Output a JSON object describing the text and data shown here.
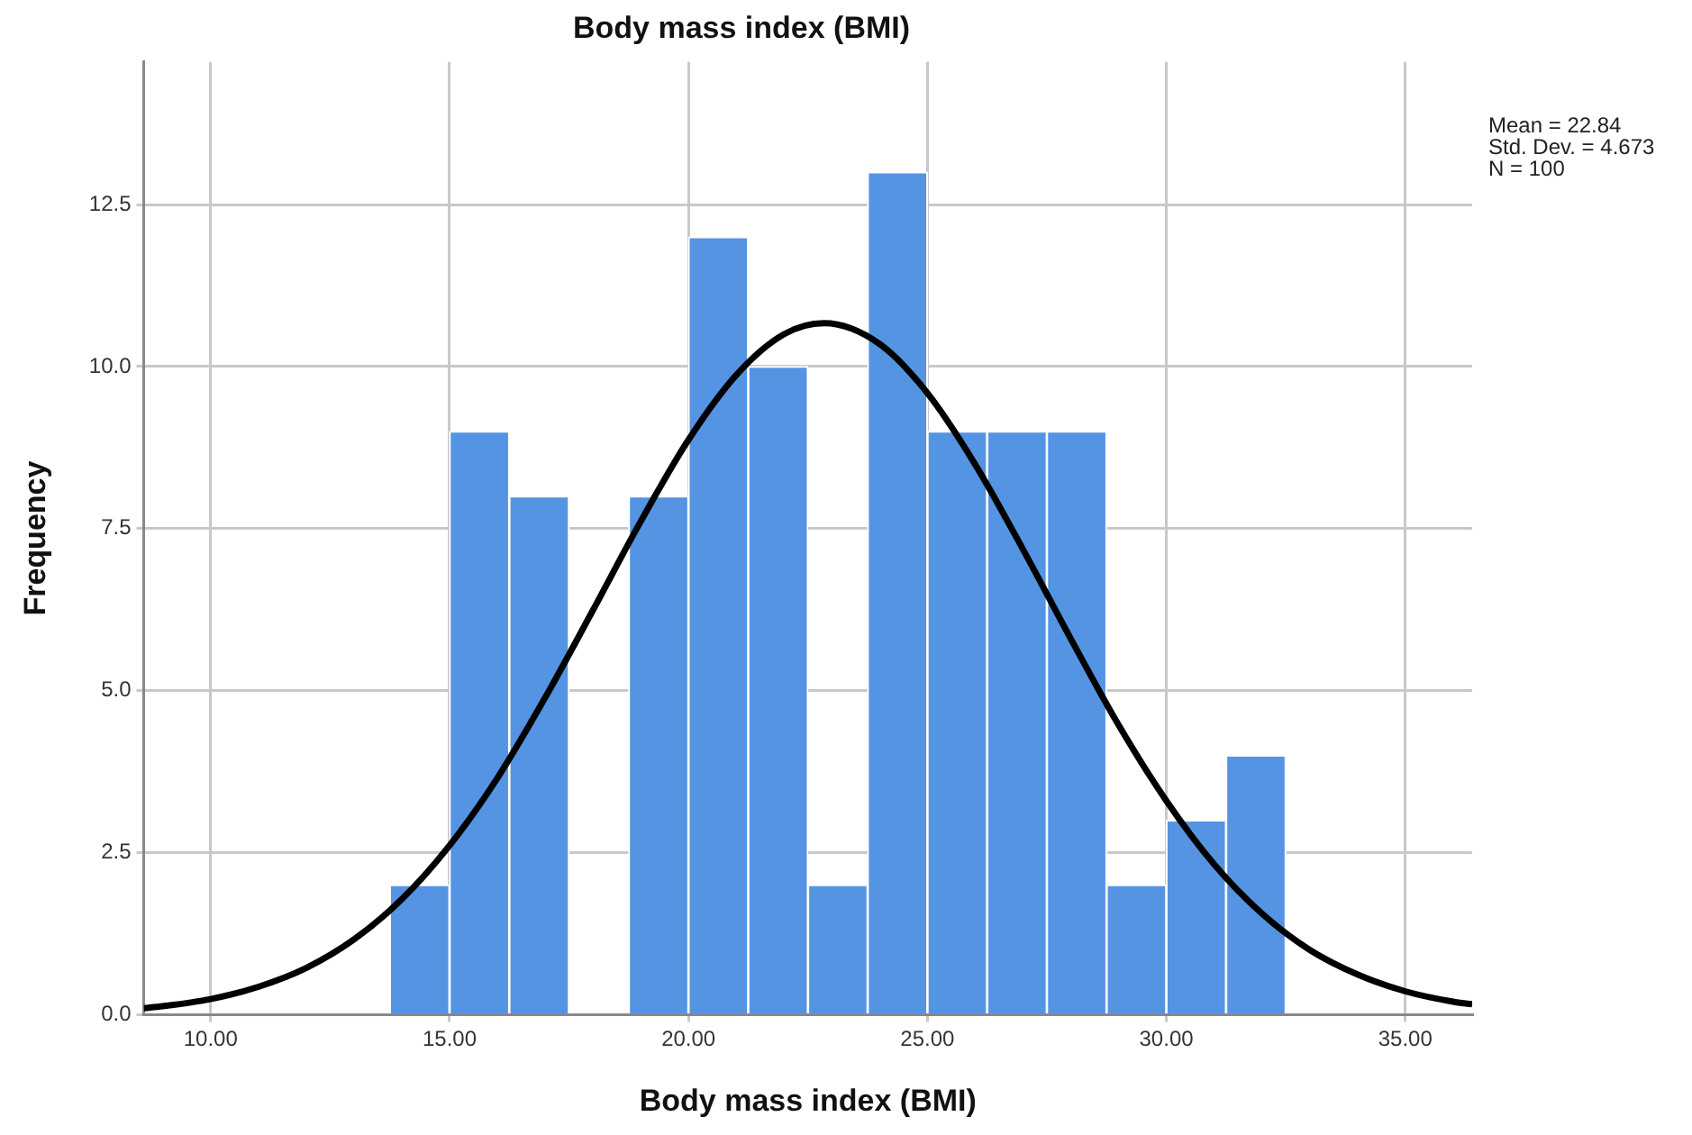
{
  "chart_data": {
    "type": "histogram",
    "title": "Body mass index (BMI)",
    "xlabel": "Body mass index (BMI)",
    "ylabel": "Frequency",
    "bins": [
      13.75,
      15,
      16.25,
      17.5,
      18.75,
      20,
      21.25,
      22.5,
      23.75,
      25,
      26.25,
      27.5,
      28.75,
      30,
      31.25,
      32.5
    ],
    "values": [
      2,
      9,
      8,
      0,
      8,
      12,
      10,
      2,
      13,
      9,
      9,
      9,
      2,
      3,
      4
    ],
    "color": "#5594e2",
    "series": [
      {
        "type": "line",
        "color": "#000000",
        "x": [
          8.6,
          9,
          10,
          11,
          12,
          13,
          14,
          15,
          16,
          17,
          18,
          19,
          20,
          21,
          22,
          22.84,
          24,
          25,
          26,
          27,
          28,
          29,
          30,
          31,
          32,
          33,
          34,
          35,
          36,
          36.4
        ],
        "values": [
          0.1,
          0.13,
          0.24,
          0.43,
          0.72,
          1.16,
          1.78,
          2.61,
          3.65,
          4.89,
          6.24,
          7.61,
          8.87,
          9.87,
          10.5,
          10.67,
          10.35,
          9.59,
          8.49,
          7.18,
          5.8,
          4.47,
          3.3,
          2.32,
          1.56,
          1.0,
          0.62,
          0.36,
          0.2,
          0.16
        ]
      }
    ],
    "xlim": [
      8.6,
      36.4
    ],
    "xticks": [
      {
        "value": 10,
        "label": "10.00"
      },
      {
        "value": 15,
        "label": "15.00"
      },
      {
        "value": 20,
        "label": "20.00"
      },
      {
        "value": 25,
        "label": "25.00"
      },
      {
        "value": 30,
        "label": "30.00"
      },
      {
        "value": 35,
        "label": "35.00"
      }
    ],
    "ylim": [
      0,
      14.7
    ],
    "yticks": [
      {
        "value": 0,
        "label": "0.0"
      },
      {
        "value": 2.5,
        "label": "2.5"
      },
      {
        "value": 5,
        "label": "5.0"
      },
      {
        "value": 7.5,
        "label": "7.5"
      },
      {
        "value": 10,
        "label": "10.0"
      },
      {
        "value": 12.5,
        "label": "12.5"
      }
    ],
    "grid": true,
    "legend": false,
    "annotations": [
      "Mean = 22.84",
      "Std. Dev. = 4.673",
      "N = 100"
    ]
  }
}
